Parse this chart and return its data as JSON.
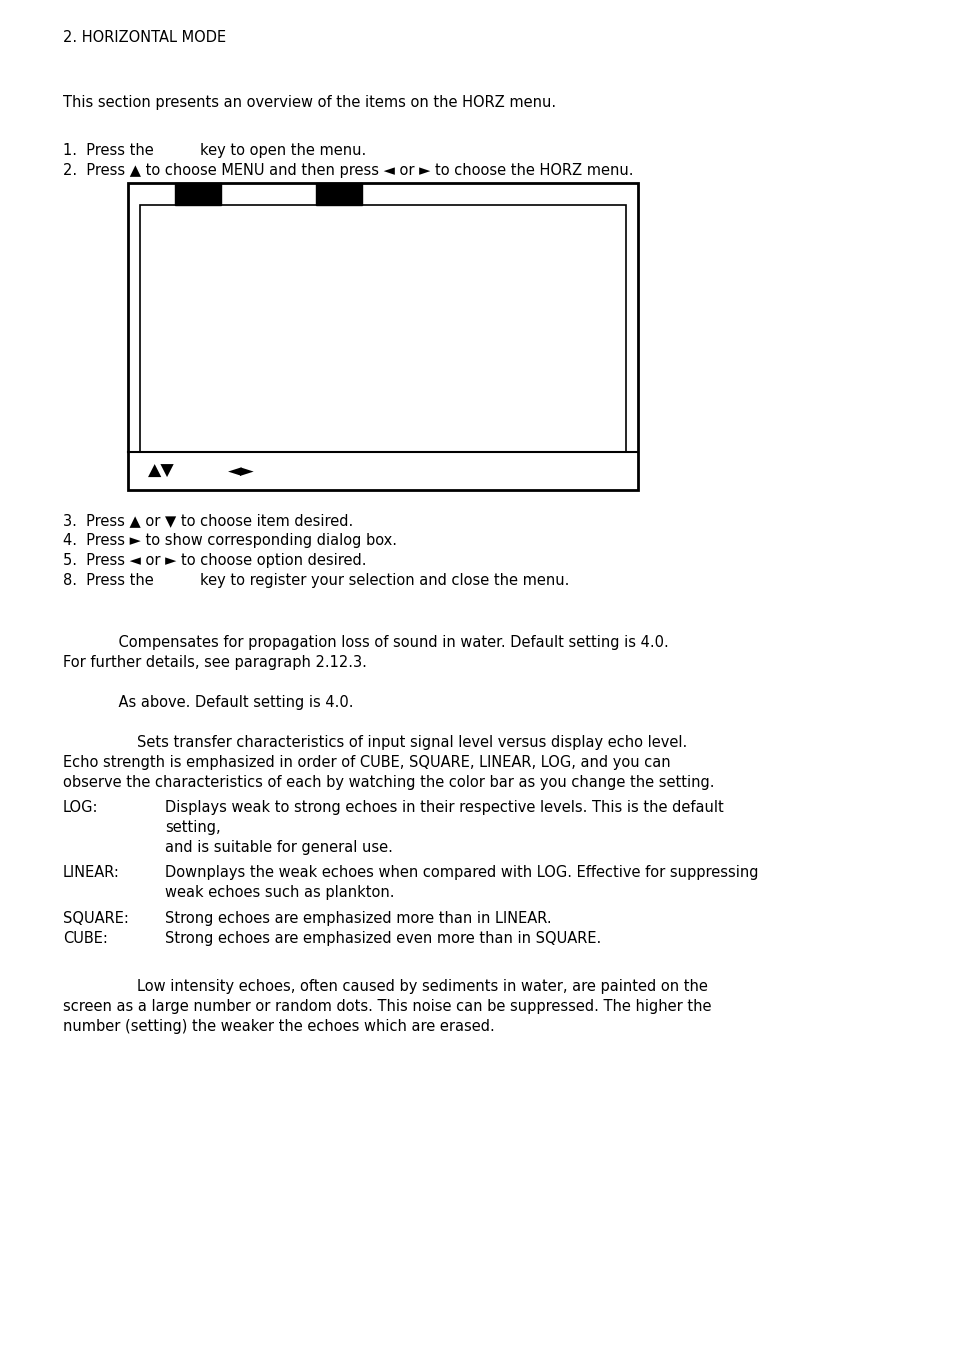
{
  "bg_color": "#ffffff",
  "title": "2. HORIZONTAL MODE",
  "section_intro": "This section presents an overview of the items on the HORZ menu.",
  "step1": "1.  Press the          key to open the menu.",
  "step2": "2.  Press ▲ to choose MENU and then press ◄ or ► to choose the HORZ menu.",
  "step3": "3.  Press ▲ or ▼ to choose item desired.",
  "step4": "4.  Press ► to show corresponding dialog box.",
  "step5": "5.  Press ◄ or ► to choose option desired.",
  "step8": "8.  Press the          key to register your selection and close the menu.",
  "para1_line1": "            Compensates for propagation loss of sound in water. Default setting is 4.0.",
  "para1_line2": "For further details, see paragraph 2.12.3.",
  "para2": "            As above. Default setting is 4.0.",
  "para3_line1": "                Sets transfer characteristics of input signal level versus display echo level.",
  "para3_line2": "Echo strength is emphasized in order of CUBE, SQUARE, LINEAR, LOG, and you can",
  "para3_line3": "observe the characteristics of each by watching the color bar as you change the setting.",
  "log_label": "LOG:",
  "log_t1": "Displays weak to strong echoes in their respective levels. This is the default",
  "log_t2": "setting,",
  "log_t3": "and is suitable for general use.",
  "linear_label": "LINEAR:",
  "linear_t1": "Downplays the weak echoes when compared with LOG. Effective for suppressing",
  "linear_t2": "weak echoes such as plankton.",
  "square_label": "SQUARE:",
  "square_text": "Strong echoes are emphasized more than in LINEAR.",
  "cube_label": "CUBE:",
  "cube_text": "Strong echoes are emphasized even more than in SQUARE.",
  "para4_line1": "                Low intensity echoes, often caused by sediments in water, are painted on the",
  "para4_line2": "screen as a large number or random dots. This noise can be suppressed. The higher the",
  "para4_line3": "number (setting) the weaker the echoes which are erased.",
  "font_size": 10.5,
  "font_size_title": 10.5
}
